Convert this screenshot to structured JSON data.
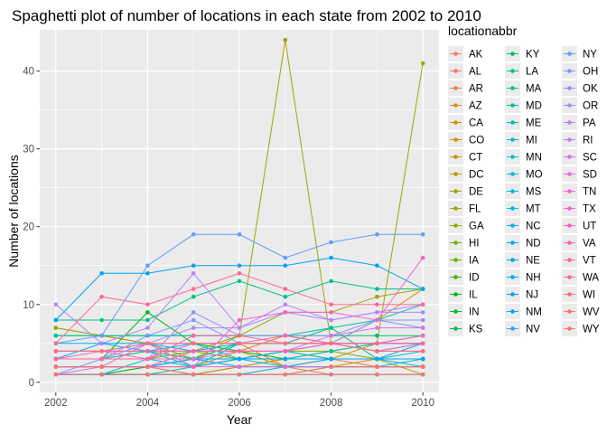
{
  "chart_data": {
    "type": "line",
    "title": "Spaghetti plot of number of locations in each state from 2002 to 2010",
    "xlabel": "Year",
    "ylabel": "Number of locations",
    "xlim": [
      2001.65,
      2010.35
    ],
    "ylim": [
      -1.3,
      45.3
    ],
    "x_ticks": [
      2002,
      2004,
      2006,
      2008,
      2010
    ],
    "y_ticks": [
      0,
      10,
      20,
      30,
      40
    ],
    "grid": true,
    "legend_title": "locationabbr",
    "legend_placement": "right",
    "x": [
      2002,
      2003,
      2004,
      2005,
      2006,
      2007,
      2008,
      2009,
      2010
    ],
    "series": [
      {
        "name": "AK",
        "color": "#f8766d",
        "values": [
          null,
          null,
          2,
          2,
          3,
          null,
          null,
          2,
          2
        ]
      },
      {
        "name": "AL",
        "color": "#f57b5c",
        "values": [
          1,
          1,
          1,
          1,
          2,
          2,
          1,
          1,
          1
        ]
      },
      {
        "name": "AR",
        "color": "#ee8043",
        "values": [
          2,
          2,
          2,
          1,
          2,
          3,
          3,
          2,
          2
        ]
      },
      {
        "name": "AZ",
        "color": "#e6861b",
        "values": [
          2,
          2,
          2,
          3,
          5,
          2,
          3,
          3,
          3
        ]
      },
      {
        "name": "CA",
        "color": "#dc8b00",
        "values": [
          1,
          1,
          2,
          2,
          4,
          6,
          5,
          8,
          12
        ]
      },
      {
        "name": "CO",
        "color": "#d09000",
        "values": [
          4,
          4,
          4,
          4,
          4,
          2,
          2,
          3,
          3
        ]
      },
      {
        "name": "CT",
        "color": "#c39600",
        "values": [
          7,
          6,
          5,
          3,
          3,
          4,
          3,
          5,
          5
        ]
      },
      {
        "name": "DC",
        "color": "#b39d00",
        "values": [
          1,
          1,
          1,
          1,
          2,
          3,
          3,
          3,
          1
        ]
      },
      {
        "name": "DE",
        "color": "#a3a300",
        "values": [
          1,
          1,
          2,
          4,
          6,
          9,
          9,
          11,
          12
        ]
      },
      {
        "name": "FL",
        "color": "#a0a500",
        "values": [
          7,
          6,
          5,
          3,
          6,
          44,
          5,
          5,
          41
        ]
      },
      {
        "name": "GA",
        "color": "#8faa00",
        "values": [
          3,
          3,
          3,
          3,
          3,
          3,
          4,
          5,
          5
        ]
      },
      {
        "name": "HI",
        "color": "#7cae00",
        "values": [
          3,
          3,
          3,
          4,
          3,
          4,
          4,
          3,
          3
        ]
      },
      {
        "name": "IA",
        "color": "#63b200",
        "values": [
          1,
          1,
          1,
          1,
          1,
          1,
          2,
          2,
          2
        ]
      },
      {
        "name": "ID",
        "color": "#3eb500",
        "values": [
          2,
          2,
          2,
          3,
          2,
          2,
          2,
          2,
          2
        ]
      },
      {
        "name": "IL",
        "color": "#00b80d",
        "values": [
          3,
          3,
          9,
          5,
          4,
          3,
          3,
          3,
          3
        ]
      },
      {
        "name": "IN",
        "color": "#00ba38",
        "values": [
          1,
          1,
          2,
          3,
          3,
          3,
          3,
          3,
          3
        ]
      },
      {
        "name": "KS",
        "color": "#00bc52",
        "values": [
          2,
          2,
          2,
          3,
          3,
          3,
          3,
          3,
          3
        ]
      },
      {
        "name": "KY",
        "color": "#00be67",
        "values": [
          6,
          6,
          6,
          6,
          6,
          6,
          6,
          6,
          6
        ]
      },
      {
        "name": "LA",
        "color": "#00bf79",
        "values": [
          3,
          3,
          4,
          3,
          5,
          5,
          7,
          3,
          3
        ]
      },
      {
        "name": "MA",
        "color": "#00c08b",
        "values": [
          8,
          8,
          8,
          11,
          13,
          11,
          13,
          12,
          12
        ]
      },
      {
        "name": "MD",
        "color": "#00c19a",
        "values": [
          6,
          6,
          6,
          6,
          6,
          6,
          7,
          8,
          10
        ]
      },
      {
        "name": "ME",
        "color": "#00c1a9",
        "values": [
          1,
          1,
          1,
          2,
          3,
          3,
          4,
          5,
          6
        ]
      },
      {
        "name": "MI",
        "color": "#00c0b8",
        "values": [
          4,
          4,
          4,
          2,
          5,
          5,
          5,
          4,
          5
        ]
      },
      {
        "name": "MN",
        "color": "#00bfc4",
        "values": [
          2,
          2,
          2,
          3,
          3,
          3,
          3,
          3,
          4
        ]
      },
      {
        "name": "MO",
        "color": "#00bcd1",
        "values": [
          1,
          1,
          3,
          2,
          3,
          4,
          3,
          3,
          2
        ]
      },
      {
        "name": "MS",
        "color": "#00b9de",
        "values": [
          2,
          2,
          2,
          3,
          3,
          2,
          2,
          2,
          3
        ]
      },
      {
        "name": "MT",
        "color": "#00b6eb",
        "values": [
          1,
          1,
          1,
          1,
          1,
          1,
          1,
          1,
          1
        ]
      },
      {
        "name": "NC",
        "color": "#00b3f2",
        "values": [
          5,
          5,
          4,
          5,
          3,
          4,
          5,
          5,
          5
        ]
      },
      {
        "name": "ND",
        "color": "#00afe7",
        "values": [
          3,
          3,
          3,
          3,
          3,
          3,
          3,
          3,
          3
        ]
      },
      {
        "name": "NE",
        "color": "#00abeb",
        "values": [
          1,
          1,
          1,
          1,
          1,
          2,
          3,
          3,
          5
        ]
      },
      {
        "name": "NH",
        "color": "#00a8ff",
        "values": [
          3,
          5,
          5,
          4,
          5,
          5,
          5,
          5,
          5
        ]
      },
      {
        "name": "NJ",
        "color": "#00a2f8",
        "values": [
          8,
          14,
          14,
          15,
          15,
          15,
          16,
          15,
          12
        ]
      },
      {
        "name": "NM",
        "color": "#00a6ff",
        "values": [
          3,
          3,
          3,
          3,
          3,
          3,
          3,
          3,
          3
        ]
      },
      {
        "name": "NV",
        "color": "#35a2ff",
        "values": [
          2,
          2,
          2,
          3,
          2,
          2,
          2,
          2,
          2
        ]
      },
      {
        "name": "NY",
        "color": "#619cff",
        "values": [
          5,
          6,
          15,
          19,
          19,
          16,
          18,
          19,
          19
        ]
      },
      {
        "name": "OH",
        "color": "#7d97ff",
        "values": [
          1,
          3,
          6,
          8,
          5,
          5,
          5,
          8,
          7
        ]
      },
      {
        "name": "OK",
        "color": "#9490ff",
        "values": [
          3,
          3,
          3,
          9,
          6,
          6,
          6,
          8,
          8
        ]
      },
      {
        "name": "OR",
        "color": "#a989ff",
        "values": [
          3,
          3,
          5,
          7,
          7,
          9,
          8,
          9,
          9
        ]
      },
      {
        "name": "PA",
        "color": "#bb81ff",
        "values": [
          10,
          5,
          7,
          14,
          7,
          10,
          8,
          9,
          10
        ]
      },
      {
        "name": "RI",
        "color": "#cc78f5",
        "values": [
          4,
          4,
          5,
          5,
          5,
          5,
          5,
          5,
          5
        ]
      },
      {
        "name": "SC",
        "color": "#da71ed",
        "values": [
          3,
          3,
          3,
          3,
          4,
          4,
          6,
          7,
          7
        ]
      },
      {
        "name": "SD",
        "color": "#e56be3",
        "values": [
          2,
          2,
          2,
          2,
          2,
          2,
          2,
          2,
          2
        ]
      },
      {
        "name": "TN",
        "color": "#ef67d7",
        "values": [
          1,
          2,
          2,
          4,
          4,
          4,
          5,
          4,
          5
        ]
      },
      {
        "name": "TX",
        "color": "#f763cb",
        "values": [
          2,
          2,
          5,
          2,
          8,
          9,
          9,
          8,
          16
        ]
      },
      {
        "name": "UT",
        "color": "#fc61bd",
        "values": [
          3,
          4,
          3,
          5,
          5,
          6,
          5,
          5,
          6
        ]
      },
      {
        "name": "VA",
        "color": "#ff62ae",
        "values": [
          4,
          4,
          4,
          4,
          4,
          4,
          5,
          4,
          4
        ]
      },
      {
        "name": "VT",
        "color": "#ff659e",
        "values": [
          3,
          3,
          3,
          6,
          6,
          5,
          5,
          5,
          5
        ]
      },
      {
        "name": "WA",
        "color": "#ff6a8d",
        "values": [
          5,
          11,
          10,
          12,
          14,
          12,
          10,
          10,
          10
        ]
      },
      {
        "name": "WI",
        "color": "#fd6f7b",
        "values": [
          4,
          4,
          5,
          5,
          5,
          5,
          5,
          4,
          4
        ]
      },
      {
        "name": "WV",
        "color": "#fa7469",
        "values": [
          2,
          2,
          2,
          1,
          1,
          1,
          2,
          2,
          2
        ]
      },
      {
        "name": "WY",
        "color": "#f8766d",
        "values": [
          1,
          1,
          1,
          1,
          1,
          1,
          1,
          1,
          1
        ]
      }
    ]
  }
}
